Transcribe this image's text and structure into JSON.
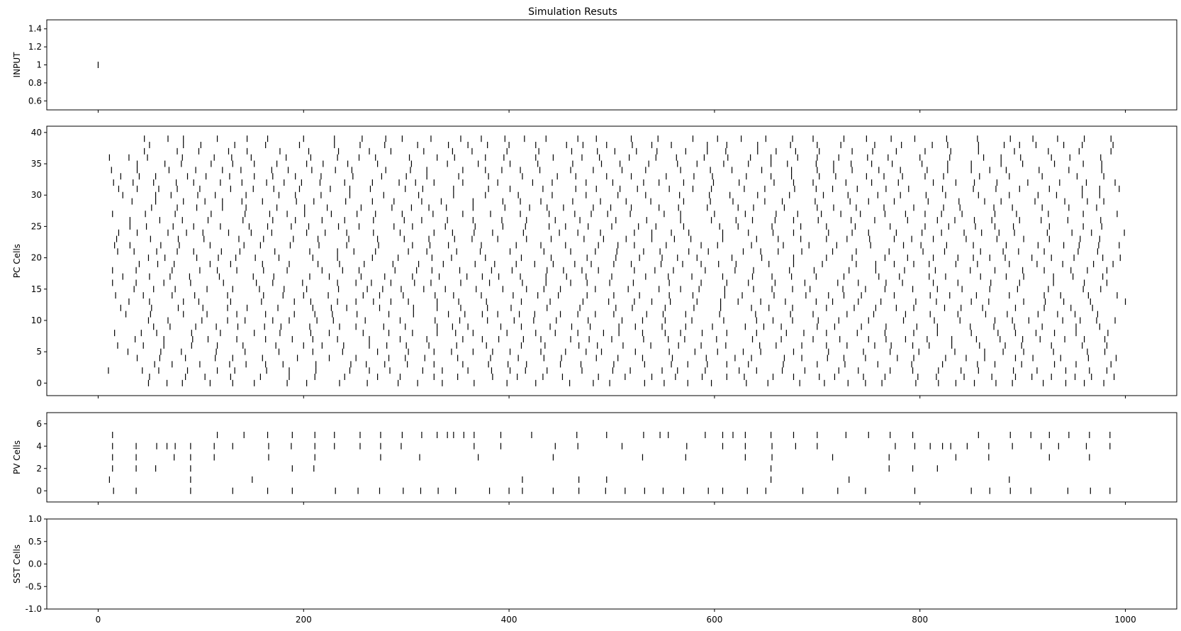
{
  "figure": {
    "title": "Simulation Resuts"
  },
  "chart_data": [
    {
      "type": "scatter",
      "marker": "vertical-line",
      "ylabel": "INPUT",
      "xlim": [
        -50,
        1050
      ],
      "ylim": [
        0.5,
        1.5
      ],
      "yticks": [
        0.6,
        0.8,
        1.0,
        1.2,
        1.4
      ],
      "xticks_labeled": false,
      "series": [
        {
          "values": [
            {
              "x": 0,
              "y": 1
            }
          ]
        }
      ]
    },
    {
      "type": "scatter",
      "marker": "vertical-line",
      "ylabel": "PC Cells",
      "xlim": [
        -50,
        1050
      ],
      "ylim": [
        -2,
        41
      ],
      "yticks": [
        0,
        5,
        10,
        15,
        20,
        25,
        30,
        35,
        40
      ],
      "xticks_labeled": false,
      "cells": 40,
      "spike_rate_hz": 40,
      "first_spike_after": 10,
      "series": []
    },
    {
      "type": "scatter",
      "marker": "vertical-line",
      "ylabel": "PV Cells",
      "xlim": [
        -50,
        1050
      ],
      "ylim": [
        -1,
        7
      ],
      "yticks": [
        0,
        2,
        4,
        6
      ],
      "xticks_labeled": false,
      "series": [
        {
          "name": "0",
          "x": [
            15,
            37,
            90,
            131,
            165,
            189,
            231,
            253,
            274,
            297,
            314,
            331,
            348,
            381,
            400,
            413,
            443,
            468,
            494,
            513,
            532,
            550,
            570,
            594,
            608,
            632,
            650,
            686,
            720,
            747,
            795,
            850,
            868,
            888,
            908,
            944,
            966,
            985
          ]
        },
        {
          "name": "1",
          "x": [
            11,
            90,
            150,
            413,
            468,
            495,
            655,
            731,
            887
          ]
        },
        {
          "name": "2",
          "x": [
            14,
            37,
            56,
            90,
            189,
            210,
            655,
            770,
            793,
            817
          ]
        },
        {
          "name": "3",
          "x": [
            14,
            37,
            74,
            90,
            113,
            166,
            211,
            275,
            313,
            370,
            443,
            530,
            572,
            630,
            656,
            715,
            770,
            835,
            867,
            926,
            965
          ]
        },
        {
          "name": "4",
          "x": [
            14,
            37,
            57,
            67,
            75,
            90,
            113,
            131,
            166,
            188,
            211,
            230,
            255,
            275,
            295,
            366,
            392,
            445,
            467,
            510,
            573,
            608,
            630,
            656,
            679,
            700,
            776,
            795,
            810,
            822,
            830,
            846,
            867,
            890,
            918,
            935,
            962,
            985
          ]
        },
        {
          "name": "5",
          "x": [
            14,
            116,
            142,
            165,
            189,
            211,
            230,
            255,
            275,
            296,
            315,
            330,
            340,
            346,
            356,
            366,
            392,
            422,
            466,
            495,
            531,
            547,
            555,
            591,
            608,
            618,
            630,
            655,
            677,
            700,
            728,
            750,
            771,
            793,
            857,
            888,
            908,
            926,
            945,
            965,
            985
          ]
        },
        {
          "name": "6",
          "x": []
        }
      ]
    },
    {
      "type": "scatter",
      "marker": "vertical-line",
      "ylabel": "SST Cells",
      "xlim": [
        -50,
        1050
      ],
      "ylim": [
        -1.0,
        1.0
      ],
      "yticks": [
        -1.0,
        -0.5,
        0.0,
        0.5,
        1.0
      ],
      "yticklabels": [
        "-1.0",
        "-0.5",
        "0.0",
        "0.5",
        "1.0"
      ],
      "xticks": [
        0,
        200,
        400,
        600,
        800,
        1000
      ],
      "xticks_labeled": true,
      "series": []
    }
  ]
}
